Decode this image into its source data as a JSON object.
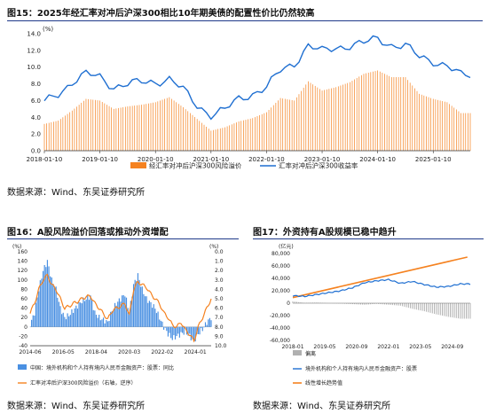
{
  "figures": {
    "fig15": {
      "title": "图15：2025年经汇率对冲后沪深300相比10年期美债的配置性价比仍然较高",
      "source": "数据来源：Wind、东吴证券研究所"
    },
    "fig16": {
      "title": "图16：A股风险溢价回落或推动外资增配",
      "source": "数据来源：Wind、东吴证券研究所"
    },
    "fig17": {
      "title": "图17：外资持有A股规模已稳中趋升",
      "source": "数据来源：Wind、东吴证券研究所"
    }
  },
  "chart_data": [
    {
      "type": "bar",
      "unit": "(%)",
      "title": "",
      "xlabel": "",
      "ylabel": "",
      "ylim": [
        0,
        14
      ],
      "y_ticks": [
        "0.0",
        "2.0",
        "4.0",
        "6.0",
        "8.0",
        "10.0",
        "12.0",
        "14.0"
      ],
      "x_ticks": [
        "2018-01-10",
        "2019-01-10",
        "2020-01-10",
        "2021-01-10",
        "2022-01-10",
        "2023-01-10",
        "2024-01-10",
        "2025-01-10"
      ],
      "legend_position": "bottom",
      "grid": false,
      "colors": {
        "bars": "#f58220",
        "line": "#1f6fd1"
      },
      "series": [
        {
          "name": "经汇率对冲后沪深300风险溢价",
          "type": "bar",
          "x": [
            "2018-01",
            "2018-04",
            "2018-07",
            "2018-10",
            "2019-01",
            "2019-04",
            "2019-07",
            "2019-10",
            "2020-01",
            "2020-04",
            "2020-07",
            "2020-10",
            "2021-01",
            "2021-04",
            "2021-07",
            "2021-10",
            "2022-01",
            "2022-04",
            "2022-07",
            "2022-10",
            "2023-01",
            "2023-04",
            "2023-07",
            "2023-10",
            "2024-01",
            "2024-04",
            "2024-07",
            "2024-10",
            "2025-01",
            "2025-04",
            "2025-07"
          ],
          "values": [
            3.2,
            3.6,
            4.8,
            6.2,
            6.0,
            5.0,
            5.3,
            5.5,
            5.8,
            6.4,
            5.2,
            3.8,
            2.4,
            2.8,
            3.5,
            3.9,
            4.6,
            6.3,
            6.0,
            8.3,
            7.2,
            7.6,
            8.2,
            9.2,
            9.6,
            8.8,
            8.8,
            6.8,
            6.2,
            5.8,
            4.5
          ]
        },
        {
          "name": "汇率对冲后沪深300收益率",
          "type": "line",
          "x": [
            "2018-01",
            "2018-04",
            "2018-07",
            "2018-10",
            "2019-01",
            "2019-04",
            "2019-07",
            "2019-10",
            "2020-01",
            "2020-04",
            "2020-07",
            "2020-10",
            "2021-01",
            "2021-04",
            "2021-07",
            "2021-10",
            "2022-01",
            "2022-04",
            "2022-07",
            "2022-10",
            "2023-01",
            "2023-04",
            "2023-07",
            "2023-10",
            "2024-01",
            "2024-04",
            "2024-07",
            "2024-10",
            "2025-01",
            "2025-04",
            "2025-07"
          ],
          "values": [
            5.8,
            6.8,
            8.2,
            9.2,
            8.8,
            7.6,
            8.0,
            8.2,
            8.2,
            8.6,
            7.3,
            5.4,
            4.3,
            4.9,
            6.2,
            6.8,
            7.6,
            9.6,
            10.4,
            12.6,
            11.9,
            12.3,
            12.6,
            12.9,
            13.4,
            12.6,
            12.6,
            11.2,
            10.7,
            10.2,
            9.0
          ]
        }
      ]
    },
    {
      "type": "line",
      "title": "",
      "unit_left": "(%)",
      "unit_right": "(%)",
      "ylim_left": [
        -40,
        160
      ],
      "ylim_right": [
        10,
        0
      ],
      "y_ticks_left": [
        "160",
        "140",
        "120",
        "100",
        "80",
        "60",
        "40",
        "20",
        "0",
        "-20",
        "-40"
      ],
      "y_ticks_right": [
        "0.0",
        "1.0",
        "2.0",
        "3.0",
        "4.0",
        "5.0",
        "6.0",
        "7.0",
        "8.0",
        "9.0",
        "10.0"
      ],
      "x_ticks": [
        "2014-06",
        "2016-05",
        "2018-04",
        "2020-03",
        "2022-02",
        "2024-01"
      ],
      "legend_position": "bottom",
      "colors": {
        "bars": "#4a90e2",
        "line": "#f58220"
      },
      "series": [
        {
          "name": "中国：境外机构和个人持有境内人民币金融资产：股票：同比",
          "type": "bar",
          "axis": "left",
          "x": [
            "2014-06",
            "2014-09",
            "2014-12",
            "2015-03",
            "2015-06",
            "2015-09",
            "2015-12",
            "2016-03",
            "2016-06",
            "2016-09",
            "2016-12",
            "2017-03",
            "2017-06",
            "2017-09",
            "2017-12",
            "2018-03",
            "2018-06",
            "2018-09",
            "2018-12",
            "2019-03",
            "2019-06",
            "2019-09",
            "2019-12",
            "2020-03",
            "2020-06",
            "2020-09",
            "2020-12",
            "2021-03",
            "2021-06",
            "2021-09",
            "2021-12",
            "2022-03",
            "2022-06",
            "2022-09",
            "2022-12",
            "2023-03",
            "2023-06",
            "2023-09",
            "2023-12",
            "2024-03",
            "2024-06",
            "2024-09",
            "2024-12"
          ],
          "values": [
            5,
            30,
            80,
            120,
            140,
            100,
            80,
            40,
            20,
            25,
            35,
            45,
            55,
            60,
            65,
            30,
            20,
            15,
            10,
            35,
            50,
            60,
            70,
            30,
            90,
            110,
            80,
            60,
            50,
            40,
            20,
            0,
            -15,
            -25,
            -20,
            -15,
            -10,
            -20,
            -30,
            -15,
            -5,
            10,
            20
          ]
        },
        {
          "name": "汇率对冲后沪深300风险溢价（右轴，逆序）",
          "type": "line",
          "axis": "right",
          "x": [
            "2014-06",
            "2014-09",
            "2014-12",
            "2015-03",
            "2015-06",
            "2015-09",
            "2015-12",
            "2016-03",
            "2016-06",
            "2016-09",
            "2016-12",
            "2017-03",
            "2017-06",
            "2017-09",
            "2017-12",
            "2018-03",
            "2018-06",
            "2018-09",
            "2018-12",
            "2019-03",
            "2019-06",
            "2019-09",
            "2019-12",
            "2020-03",
            "2020-06",
            "2020-09",
            "2020-12",
            "2021-03",
            "2021-06",
            "2021-09",
            "2021-12",
            "2022-03",
            "2022-06",
            "2022-09",
            "2022-12",
            "2023-03",
            "2023-06",
            "2023-09",
            "2023-12",
            "2024-03",
            "2024-06",
            "2024-09",
            "2024-12"
          ],
          "values": [
            6.5,
            5.5,
            4.0,
            3.0,
            2.5,
            3.5,
            4.0,
            5.0,
            6.0,
            5.8,
            5.5,
            5.3,
            5.0,
            4.8,
            4.7,
            5.5,
            6.0,
            6.6,
            7.2,
            6.3,
            6.0,
            5.8,
            5.5,
            6.8,
            4.0,
            3.2,
            3.5,
            3.8,
            4.5,
            5.0,
            5.5,
            6.5,
            7.0,
            7.8,
            8.0,
            7.5,
            8.3,
            8.8,
            9.5,
            8.0,
            7.0,
            6.0,
            5.0
          ]
        }
      ]
    },
    {
      "type": "line",
      "title": "",
      "unit": "(亿元)",
      "ylim": [
        -60000,
        80000
      ],
      "y_ticks": [
        "80,000",
        "60,000",
        "40,000",
        "20,000",
        "0",
        "-20,000",
        "-40,000",
        "-60,000"
      ],
      "x_ticks": [
        "2018-01",
        "2019-05",
        "2020-09",
        "2022-01",
        "2023-05",
        "2024-09"
      ],
      "legend_position": "bottom",
      "colors": {
        "bars": "#b0b0b0",
        "line": "#1f6fd1",
        "trend": "#f58220"
      },
      "series": [
        {
          "name": "偏离",
          "type": "bar",
          "x": [
            "2018-01",
            "2018-07",
            "2019-01",
            "2019-07",
            "2020-01",
            "2020-07",
            "2021-01",
            "2021-07",
            "2022-01",
            "2022-07",
            "2023-01",
            "2023-07",
            "2024-01",
            "2024-07",
            "2025-01"
          ],
          "values": [
            3000,
            500,
            1000,
            0,
            -500,
            -1500,
            -2500,
            -1000,
            -2500,
            -4000,
            -9000,
            -13000,
            -18000,
            -22000,
            -25000
          ]
        },
        {
          "name": "境外机构和个人持有境内人民币金融资产：股票",
          "type": "line",
          "x": [
            "2018-01",
            "2018-07",
            "2019-01",
            "2019-07",
            "2020-01",
            "2020-07",
            "2021-01",
            "2021-07",
            "2022-01",
            "2022-07",
            "2023-01",
            "2023-07",
            "2024-01",
            "2024-07",
            "2025-01"
          ],
          "values": [
            12000,
            11000,
            14000,
            17000,
            20000,
            25000,
            33000,
            36000,
            38000,
            32000,
            35000,
            30000,
            26000,
            27000,
            31000
          ]
        },
        {
          "name": "线性增长趋势值",
          "type": "line",
          "x": [
            "2018-01",
            "2025-01"
          ],
          "values": [
            9000,
            70000
          ]
        }
      ]
    }
  ]
}
